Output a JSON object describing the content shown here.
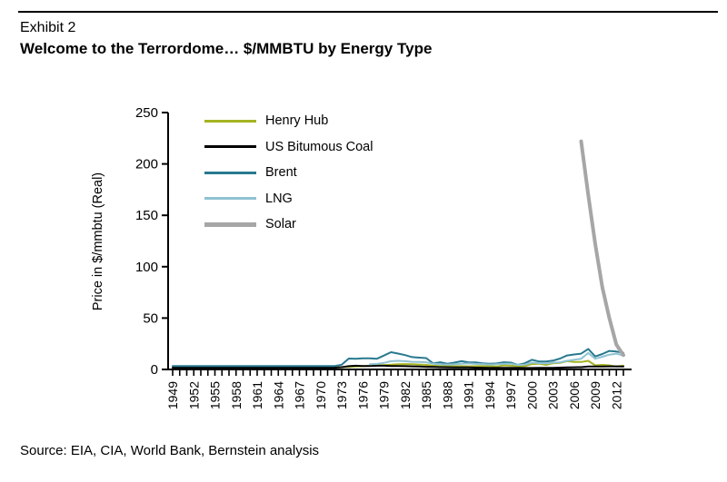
{
  "header": {
    "exhibit": "Exhibit 2",
    "title": "Welcome to the Terrordome… $/MMBTU by Energy Type"
  },
  "footer": {
    "source": "Source: EIA, CIA, World Bank, Bernstein analysis"
  },
  "chart_data": {
    "type": "line",
    "title": "Welcome to the Terrordome… $/MMBTU by Energy Type",
    "xlabel": "",
    "ylabel": "Price in $/mmbtu (Real)",
    "ylim": [
      0,
      250
    ],
    "yticks": [
      0,
      50,
      100,
      150,
      200,
      250
    ],
    "x_start": 1949,
    "x_end": 2013,
    "x_label_step": 3,
    "x_labels": [
      "1949",
      "1952",
      "1955",
      "1958",
      "1961",
      "1964",
      "1967",
      "1970",
      "1973",
      "1976",
      "1979",
      "1982",
      "1985",
      "1988",
      "1991",
      "1994",
      "1997",
      "2000",
      "2003",
      "2006",
      "2009",
      "2012"
    ],
    "grid": false,
    "legend_position": "top-left",
    "series": [
      {
        "name": "Henry Hub",
        "color": "#a5b322",
        "width": 2,
        "start_year": 1949,
        "values": [
          2,
          2,
          2,
          2,
          2,
          2,
          2,
          2,
          2,
          2,
          2,
          2,
          2,
          2,
          2,
          2,
          2,
          2,
          2,
          2,
          2,
          2,
          2,
          2,
          2.2,
          2.5,
          2.8,
          3.2,
          3.6,
          3.8,
          4.2,
          4.6,
          5,
          5.2,
          5,
          4.8,
          4.4,
          3.6,
          3.2,
          3.2,
          3.2,
          3.2,
          3,
          3.2,
          3.4,
          3.2,
          2.8,
          4,
          3.6,
          3.2,
          3.2,
          5.2,
          5.6,
          4.4,
          6,
          6.4,
          8,
          7.2,
          7.2,
          8.4,
          4,
          4.4,
          4,
          2.8,
          3.6
        ]
      },
      {
        "name": "US Bitumous Coal",
        "color": "#000000",
        "width": 2,
        "start_year": 1949,
        "values": [
          1.8,
          1.8,
          1.8,
          1.8,
          1.8,
          1.8,
          1.8,
          1.8,
          1.8,
          1.8,
          1.8,
          1.8,
          1.8,
          1.8,
          1.8,
          1.8,
          1.8,
          1.8,
          1.8,
          1.8,
          1.8,
          1.8,
          1.8,
          1.8,
          2.2,
          3.2,
          3.6,
          3.4,
          3.4,
          3.6,
          3.6,
          3.4,
          3.4,
          3.2,
          3,
          2.8,
          2.6,
          2.4,
          2.2,
          2.1,
          2,
          1.9,
          1.9,
          1.8,
          1.7,
          1.6,
          1.6,
          1.5,
          1.5,
          1.5,
          1.4,
          1.4,
          1.5,
          1.5,
          1.5,
          1.8,
          2,
          2.1,
          2.2,
          2.8,
          2.8,
          2.8,
          3,
          3,
          2.9
        ]
      },
      {
        "name": "Brent",
        "color": "#28798f",
        "width": 2,
        "start_year": 1949,
        "values": [
          3.4,
          3.4,
          3.4,
          3.4,
          3.4,
          3.4,
          3.4,
          3.4,
          3.4,
          3.4,
          3.4,
          3.4,
          3.4,
          3.4,
          3.4,
          3.4,
          3.4,
          3.4,
          3.4,
          3.4,
          3.4,
          3.4,
          3.4,
          3.4,
          4.6,
          10.6,
          10.4,
          10.8,
          10.8,
          10.4,
          13.5,
          16.8,
          15.5,
          14,
          12,
          11.5,
          11,
          5.8,
          7,
          5.6,
          6.6,
          8,
          7,
          6.8,
          6,
          5.6,
          5.8,
          7,
          6.6,
          4.4,
          6,
          9.4,
          7.8,
          7.8,
          8.6,
          10.6,
          13.6,
          14.6,
          15.4,
          20,
          12.6,
          15,
          18,
          17.4,
          16.2
        ]
      },
      {
        "name": "LNG",
        "color": "#8fc2d2",
        "width": 2,
        "start_year": 1977,
        "values": [
          5,
          5.4,
          6.4,
          8,
          8.4,
          8,
          7.4,
          7.2,
          7,
          5.6,
          5,
          4.8,
          5,
          5.6,
          5.8,
          5.4,
          5.2,
          4.8,
          5,
          5.6,
          5.6,
          4.4,
          4.8,
          6.6,
          6.2,
          5.8,
          6.6,
          7,
          8.4,
          9.4,
          10.4,
          16,
          10.4,
          12.4,
          14.4,
          15.4,
          13.4
        ]
      },
      {
        "name": "Solar",
        "color": "#a6a6a6",
        "width": 4,
        "start_year": 2007,
        "values": [
          222,
          170,
          122,
          80,
          50,
          24,
          14
        ]
      }
    ]
  }
}
